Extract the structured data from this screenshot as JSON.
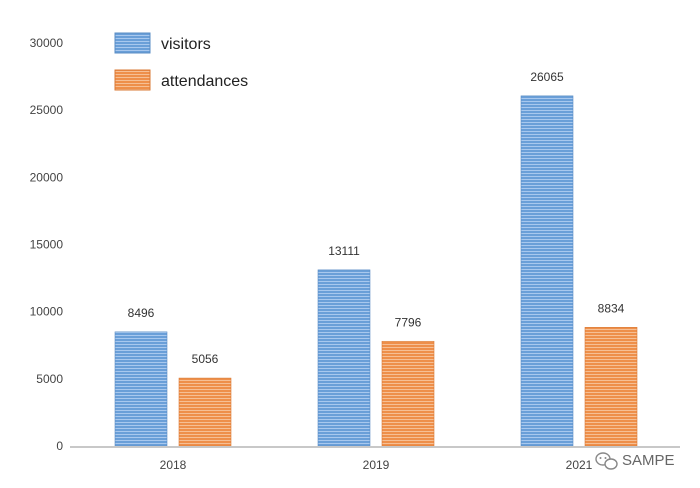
{
  "chart_data": {
    "type": "bar",
    "categories": [
      "2018",
      "2019",
      "2021"
    ],
    "series": [
      {
        "name": "visitors",
        "values": [
          8496,
          13111,
          26065
        ],
        "color": "#6a9fd8"
      },
      {
        "name": "attendances",
        "values": [
          5056,
          7796,
          8834
        ],
        "color": "#ee8f4a"
      }
    ],
    "ylim": [
      0,
      30000
    ],
    "yticks": [
      0,
      5000,
      10000,
      15000,
      20000,
      25000,
      30000
    ],
    "title": "",
    "xlabel": "",
    "ylabel": "",
    "legend_position": "top-left",
    "grid": false
  },
  "watermark": {
    "text": "SAMPE"
  }
}
